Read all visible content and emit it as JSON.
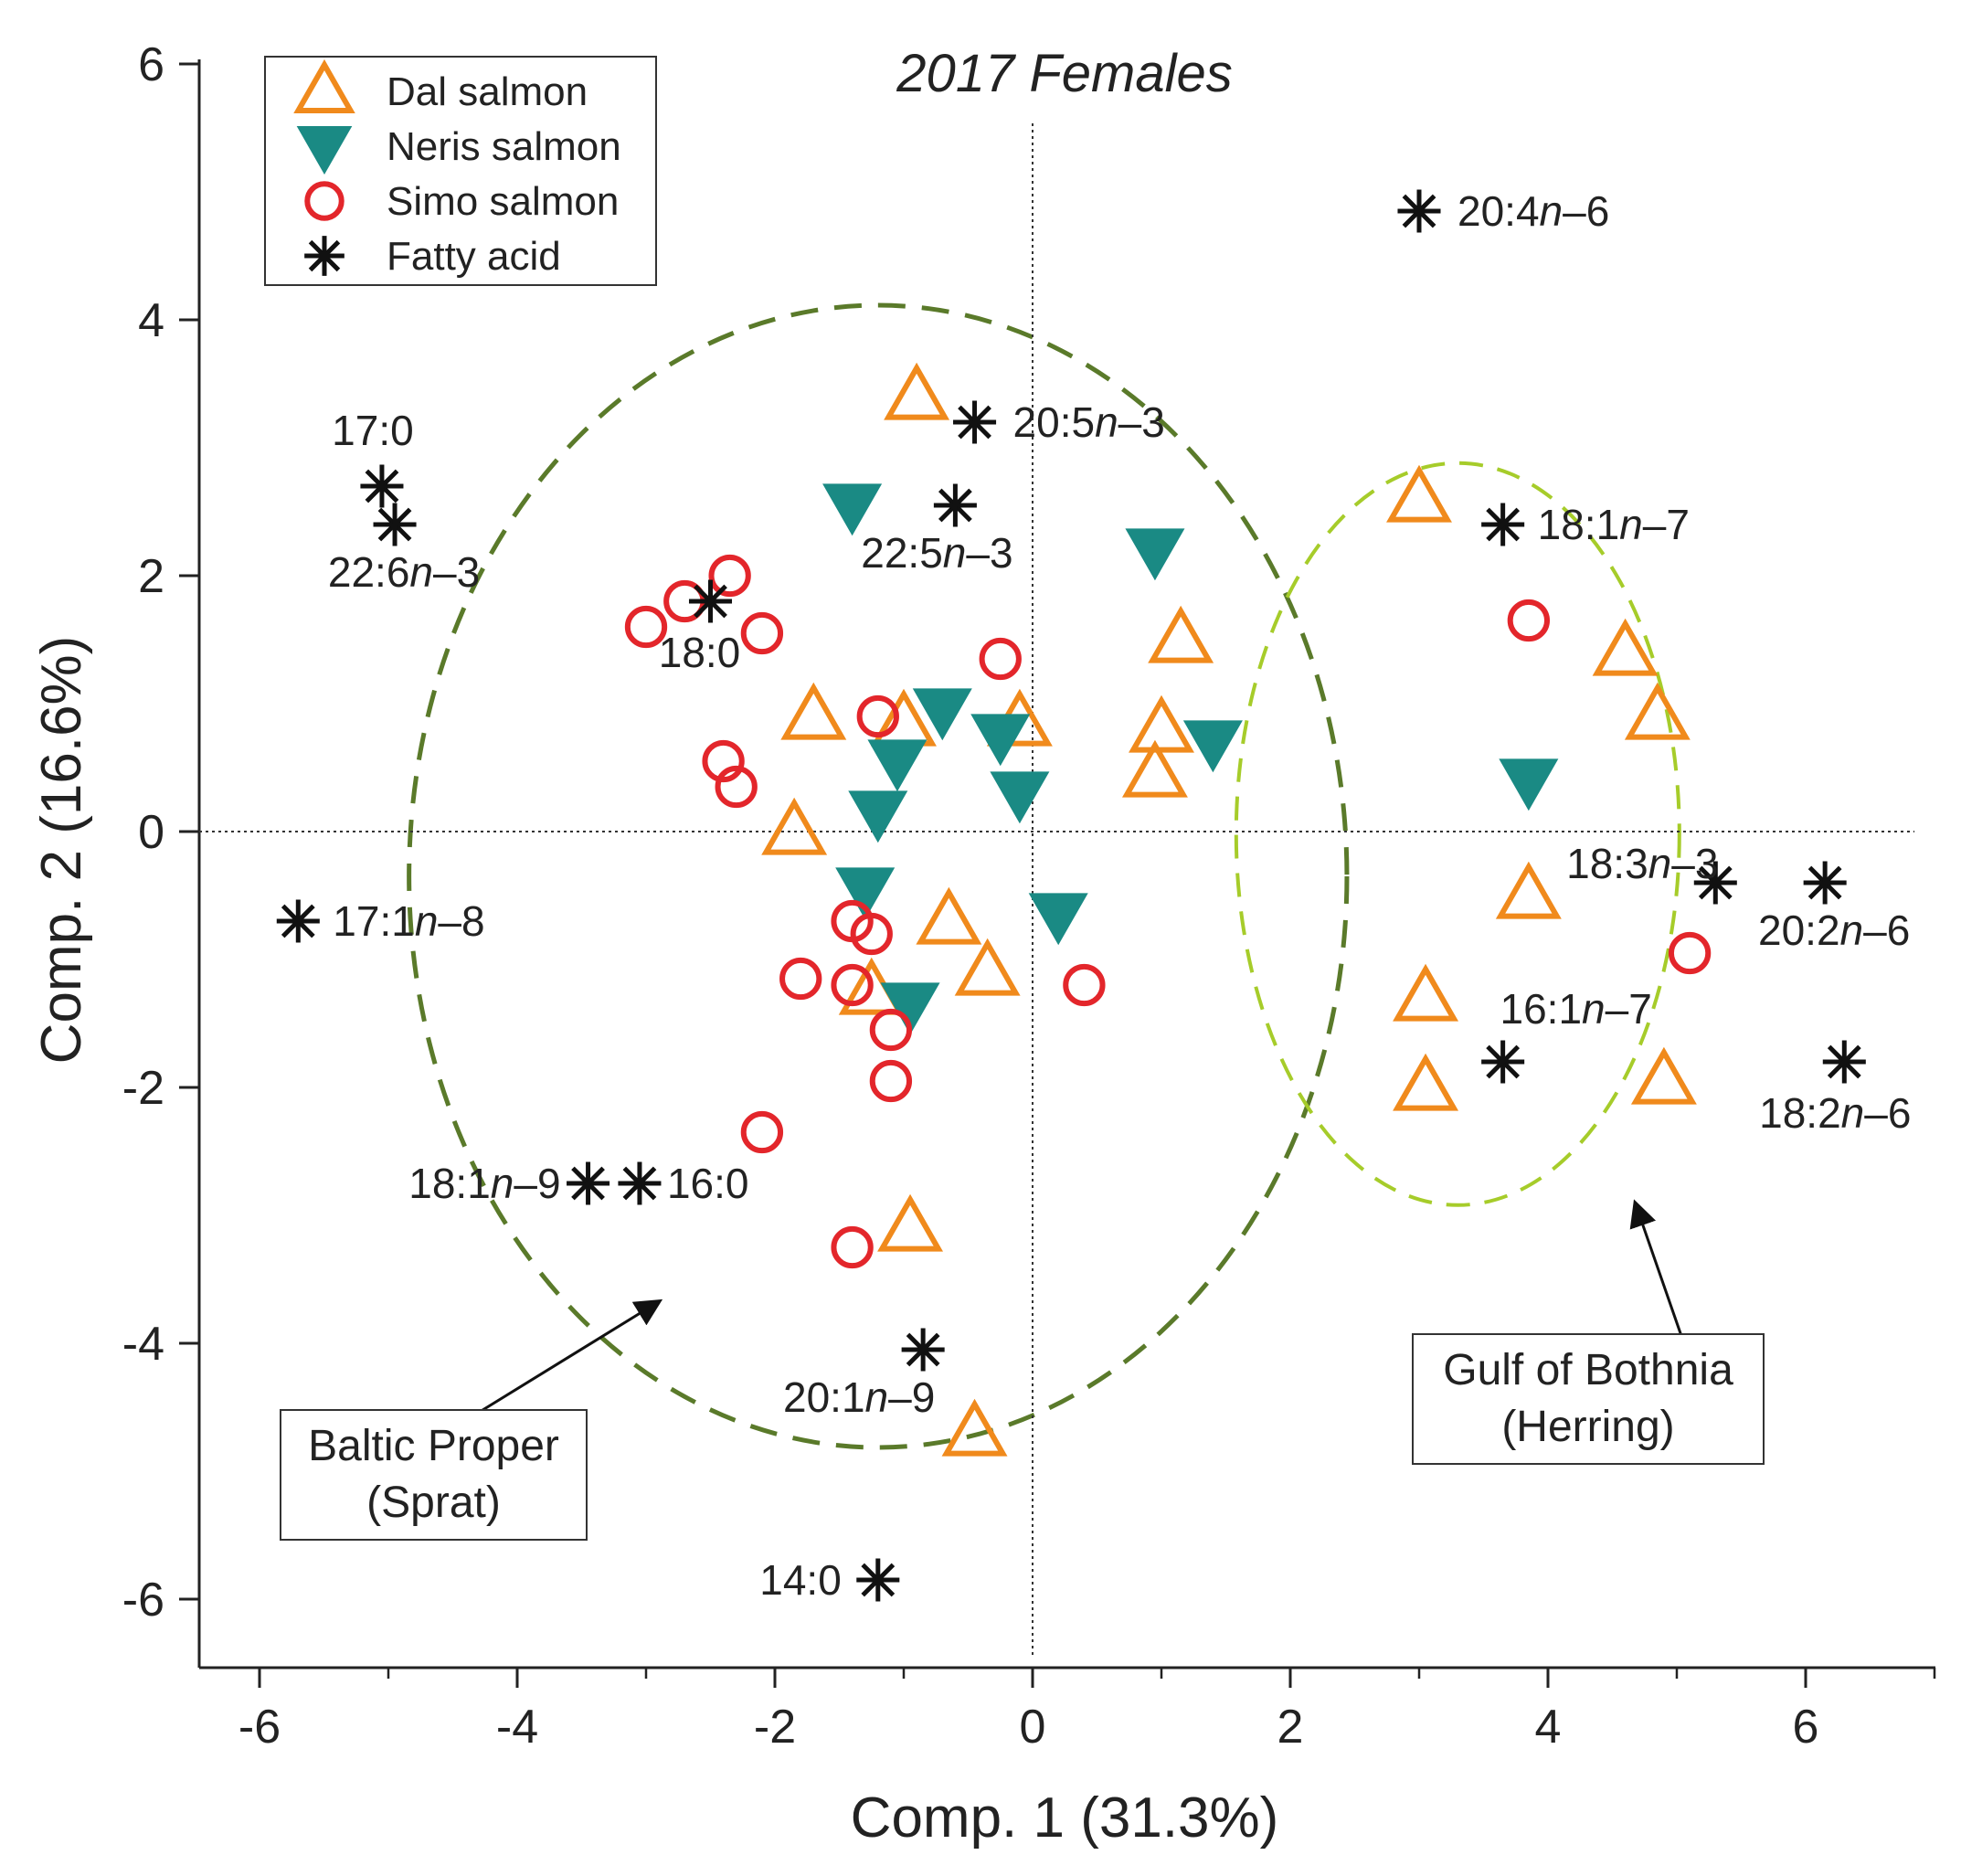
{
  "chart_data": {
    "type": "scatter",
    "title": "2017 Females",
    "xlabel": "Comp. 1 (31.3%)",
    "ylabel": "Comp. 2 (16.6%)",
    "xlim": [
      -6.5,
      7
    ],
    "ylim": [
      -6.5,
      6
    ],
    "x_ticks": [
      -6,
      -4,
      -2,
      0,
      2,
      4,
      6
    ],
    "y_ticks": [
      -6,
      -4,
      -2,
      0,
      2,
      4,
      6
    ],
    "x_tick_labels": [
      "-6",
      "-4",
      "-2",
      "0",
      "2",
      "4",
      "6"
    ],
    "y_tick_labels": [
      "-6",
      "-4",
      "-2",
      "0",
      "2",
      "4",
      "6"
    ],
    "grid": false,
    "legend_position": "top-left",
    "series": [
      {
        "name": "Dal salmon",
        "marker": "triangle-up-open",
        "color": "#f08a1c",
        "points": [
          [
            -0.9,
            3.4
          ],
          [
            3.0,
            2.6
          ],
          [
            1.15,
            1.5
          ],
          [
            4.6,
            1.4
          ],
          [
            4.85,
            0.9
          ],
          [
            -1.7,
            0.9
          ],
          [
            -1.0,
            0.85
          ],
          [
            -0.1,
            0.85
          ],
          [
            1.0,
            0.8
          ],
          [
            0.95,
            0.45
          ],
          [
            -1.85,
            0.0
          ],
          [
            3.85,
            -0.5
          ],
          [
            -0.65,
            -0.7
          ],
          [
            -0.35,
            -1.1
          ],
          [
            -1.25,
            -1.25
          ],
          [
            3.05,
            -1.3
          ],
          [
            3.05,
            -2.0
          ],
          [
            4.9,
            -1.95
          ],
          [
            -0.95,
            -3.1
          ],
          [
            -0.45,
            -4.7
          ]
        ]
      },
      {
        "name": "Neris salmon",
        "marker": "triangle-down-filled",
        "color": "#1a8a84",
        "points": [
          [
            -1.4,
            2.55
          ],
          [
            0.95,
            2.2
          ],
          [
            -0.7,
            0.95
          ],
          [
            -0.25,
            0.75
          ],
          [
            1.4,
            0.7
          ],
          [
            -1.05,
            0.55
          ],
          [
            3.85,
            0.4
          ],
          [
            -0.1,
            0.3
          ],
          [
            -1.2,
            0.15
          ],
          [
            -1.3,
            -0.45
          ],
          [
            0.2,
            -0.65
          ],
          [
            -0.95,
            -1.35
          ]
        ]
      },
      {
        "name": "Simo salmon",
        "marker": "circle-open",
        "color": "#e3262b",
        "points": [
          [
            -2.35,
            2.0
          ],
          [
            -2.7,
            1.8
          ],
          [
            -3.0,
            1.6
          ],
          [
            -2.1,
            1.55
          ],
          [
            3.85,
            1.65
          ],
          [
            -0.25,
            1.35
          ],
          [
            -1.2,
            0.9
          ],
          [
            -2.4,
            0.55
          ],
          [
            -2.3,
            0.35
          ],
          [
            -1.4,
            -0.7
          ],
          [
            -1.25,
            -0.8
          ],
          [
            5.1,
            -0.95
          ],
          [
            -1.8,
            -1.15
          ],
          [
            0.4,
            -1.2
          ],
          [
            -1.4,
            -1.2
          ],
          [
            -1.1,
            -1.55
          ],
          [
            -1.1,
            -1.95
          ],
          [
            -2.1,
            -2.35
          ],
          [
            -1.4,
            -3.25
          ]
        ]
      },
      {
        "name": "Fatty acid",
        "marker": "asterisk",
        "color": "#111111",
        "points": [
          [
            3.0,
            4.85,
            "20:4n–6"
          ],
          [
            -0.45,
            3.2,
            "20:5n–3"
          ],
          [
            -5.05,
            2.7,
            "17:0"
          ],
          [
            -4.95,
            2.4,
            "22:6n–3"
          ],
          [
            -0.6,
            2.55,
            "22:5n–3"
          ],
          [
            3.65,
            2.4,
            "18:1n–7"
          ],
          [
            -2.5,
            1.8,
            "18:0"
          ],
          [
            5.3,
            -0.4,
            "18:3n–3"
          ],
          [
            6.15,
            -0.4,
            "20:2n–6"
          ],
          [
            -5.7,
            -0.7,
            "17:1n–8"
          ],
          [
            3.65,
            -1.8,
            "16:1n–7"
          ],
          [
            6.3,
            -1.8,
            "18:2n–6"
          ],
          [
            -3.45,
            -2.75,
            "18:1n–9"
          ],
          [
            -3.05,
            -2.75,
            "16:0"
          ],
          [
            -0.85,
            -4.05,
            "20:1n–9"
          ],
          [
            -1.2,
            -5.85,
            "14:0"
          ]
        ]
      }
    ],
    "annotations": [
      {
        "lines": [
          "Baltic Proper",
          "(Sprat)"
        ],
        "group": "baltic"
      },
      {
        "lines": [
          "Gulf of Bothnia",
          "(Herring)"
        ],
        "group": "gulf"
      }
    ]
  }
}
